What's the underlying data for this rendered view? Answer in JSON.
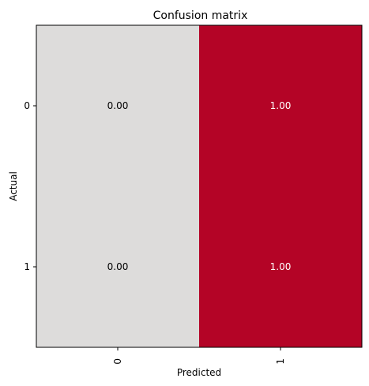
{
  "chart_data": {
    "type": "heatmap",
    "title": "Confusion matrix",
    "xlabel": "Predicted",
    "ylabel": "Actual",
    "x_categories": [
      "0",
      "1"
    ],
    "y_categories": [
      "0",
      "1"
    ],
    "x_tick_rotation": 90,
    "values": [
      [
        0.0,
        1.0
      ],
      [
        0.0,
        1.0
      ]
    ],
    "value_labels": [
      [
        "0.00",
        "1.00"
      ],
      [
        "0.00",
        "1.00"
      ]
    ],
    "colorscale": {
      "low": "#dddcdb",
      "high": "#b40426"
    },
    "cell_text_colors": {
      "low": "#000000",
      "high": "#ffffff"
    },
    "grid": false
  }
}
